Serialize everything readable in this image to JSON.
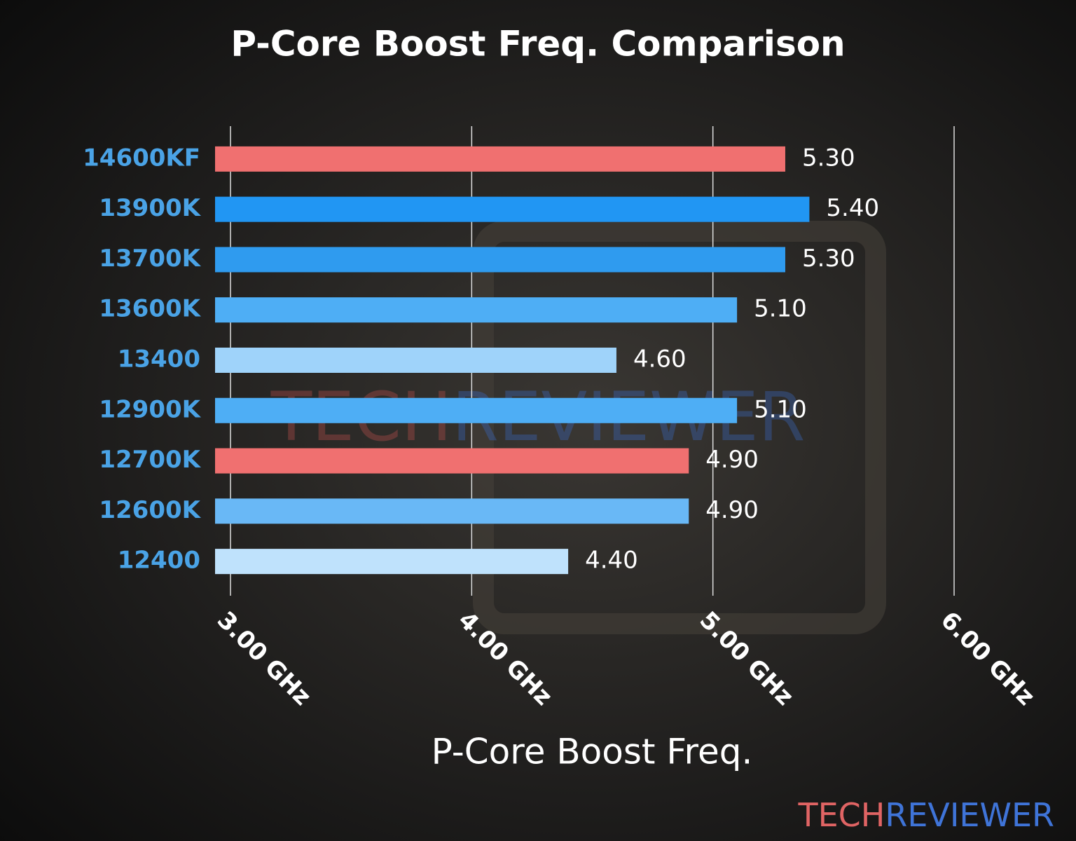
{
  "chart_data": {
    "type": "hbar",
    "title": "P-Core Boost Freq. Comparison",
    "x_label": "P-Core Boost Freq.",
    "categories": [
      "14600KF",
      "13900K",
      "13700K",
      "13600K",
      "13400",
      "12900K",
      "12700K",
      "12600K",
      "12400"
    ],
    "values": [
      5.3,
      5.4,
      5.3,
      5.1,
      4.6,
      5.1,
      4.9,
      4.9,
      4.4
    ],
    "value_labels": [
      "5.30",
      "5.40",
      "5.30",
      "5.10",
      "4.60",
      "5.10",
      "4.90",
      "4.90",
      "4.40"
    ],
    "colors": [
      "#f07070",
      "#2196f3",
      "#2f9bef",
      "#4eaef5",
      "#9fd3fa",
      "#4eaef5",
      "#f07070",
      "#69b8f6",
      "#bfe2fc"
    ],
    "xlim": [
      2.936,
      6.0
    ],
    "xticks": [
      {
        "value": 3,
        "label": "3.00 GHz"
      },
      {
        "value": 4,
        "label": "4.00 GHz"
      },
      {
        "value": 5,
        "label": "5.00 GHz"
      },
      {
        "value": 6,
        "label": "6.00 GHz"
      }
    ],
    "grid": true,
    "watermark": [
      "TECH",
      "REVIEWER"
    ]
  }
}
